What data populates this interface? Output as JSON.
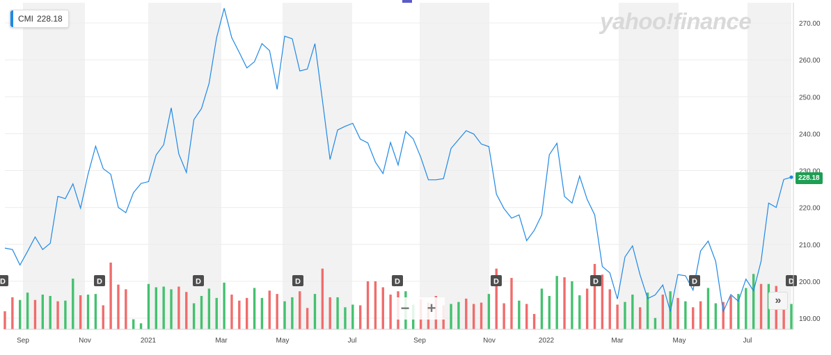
{
  "legend": {
    "symbol": "CMI",
    "value": "228.18"
  },
  "logo": {
    "text": "yahoo!finance"
  },
  "price_tag": "228.18",
  "controls": {
    "zoom_out": "−",
    "zoom_in": "+",
    "expand": "»"
  },
  "dividend_marker_label": "D",
  "colors": {
    "line": "#1e88e5",
    "up_volume": "#44c16f",
    "down_volume": "#f06c6c",
    "band": "#f2f2f2",
    "price_tag": "#1e9e53"
  },
  "chart_data": {
    "type": "line",
    "title": "",
    "xlabel": "",
    "ylabel": "",
    "ylim": [
      187,
      276
    ],
    "grid": true,
    "y_ticks": [
      "190.00",
      "200.00",
      "210.00",
      "220.00",
      "230.00",
      "240.00",
      "250.00",
      "260.00",
      "270.00"
    ],
    "x_labels": [
      "Sep",
      "Nov",
      "2021",
      "Mar",
      "May",
      "Jul",
      "Sep",
      "Nov",
      "2022",
      "Mar",
      "May",
      "Jul"
    ],
    "dividend_markers": [
      "Aug 2020",
      "Nov 2020",
      "Feb 2021",
      "May 2021",
      "Aug 2021",
      "Nov 2021",
      "Feb 2022",
      "May 2022",
      "Aug 2022"
    ],
    "series": [
      {
        "values": [
          209.0,
          208.6,
          204.4,
          208.1,
          212.0,
          208.6,
          210.3,
          223.0,
          222.4,
          226.4,
          219.8,
          229.0,
          236.6,
          230.5,
          229.0,
          220.0,
          218.6,
          224.0,
          226.5,
          227.0,
          234.2,
          237.0,
          247.0,
          234.5,
          229.5,
          243.8,
          246.8,
          253.6,
          266.0,
          274.0,
          266.0,
          262.0,
          257.8,
          259.5,
          264.4,
          262.5,
          252.0,
          266.4,
          265.7,
          257.0,
          257.5,
          264.4,
          249.0,
          233.0,
          241.0,
          242.0,
          242.8,
          238.5,
          237.5,
          232.3,
          229.2,
          237.6,
          231.5,
          240.6,
          238.6,
          233.6,
          227.5,
          227.5,
          227.8,
          236.0,
          238.4,
          240.8,
          239.9,
          237.2,
          236.5,
          223.6,
          219.7,
          217.1,
          218.0,
          211.0,
          213.8,
          218.0,
          234.3,
          237.4,
          223.0,
          221.2,
          228.5,
          222.2,
          218.0,
          204.0,
          202.3,
          195.2,
          206.6,
          209.6,
          201.7,
          195.3,
          196.3,
          199.0,
          191.8,
          201.8,
          201.5,
          197.6,
          208.2,
          210.9,
          205.4,
          191.8,
          196.4,
          194.6,
          200.6,
          197.4,
          205.4,
          221.2,
          220.0,
          227.6,
          228.2
        ],
        "volume_direction": [
          "down",
          "down",
          "up",
          "up",
          "down",
          "up",
          "up",
          "down",
          "up",
          "up",
          "down",
          "up",
          "up",
          "down",
          "down",
          "down",
          "down",
          "up",
          "up",
          "up",
          "up",
          "up",
          "up",
          "down",
          "down",
          "up",
          "up",
          "up",
          "up",
          "up",
          "down",
          "down",
          "down",
          "up",
          "up",
          "down",
          "down",
          "up",
          "up",
          "down",
          "down",
          "up",
          "down",
          "down",
          "up",
          "up",
          "up",
          "down",
          "down",
          "down",
          "down",
          "down",
          "down",
          "up",
          "up",
          "down",
          "down",
          "down",
          "down",
          "up",
          "up",
          "down",
          "down",
          "down",
          "up",
          "down",
          "down",
          "down",
          "up",
          "down",
          "down",
          "up",
          "up",
          "up",
          "down",
          "up",
          "up",
          "down",
          "down",
          "down",
          "down",
          "down",
          "up",
          "up",
          "down",
          "up",
          "up",
          "down",
          "up",
          "down",
          "up",
          "down",
          "down",
          "up",
          "up",
          "down",
          "down",
          "up",
          "up",
          "up",
          "down",
          "up",
          "down",
          "down",
          "up"
        ],
        "volume_level": [
          0.27,
          0.48,
          0.44,
          0.55,
          0.44,
          0.52,
          0.5,
          0.42,
          0.43,
          0.76,
          0.51,
          0.52,
          0.53,
          0.36,
          1.0,
          0.67,
          0.6,
          0.15,
          0.09,
          0.68,
          0.63,
          0.64,
          0.6,
          0.64,
          0.56,
          0.39,
          0.5,
          0.61,
          0.47,
          0.7,
          0.52,
          0.43,
          0.47,
          0.62,
          0.47,
          0.58,
          0.53,
          0.42,
          0.48,
          0.57,
          0.32,
          0.53,
          0.91,
          0.48,
          0.48,
          0.33,
          0.37,
          0.36,
          0.72,
          0.72,
          0.63,
          0.52,
          0.57,
          0.57,
          0.37,
          0.45,
          0.4,
          0.5,
          0.36,
          0.38,
          0.41,
          0.46,
          0.38,
          0.4,
          0.53,
          0.91,
          0.39,
          0.77,
          0.43,
          0.38,
          0.23,
          0.61,
          0.5,
          0.8,
          0.78,
          0.72,
          0.51,
          0.61,
          0.98,
          0.82,
          0.6,
          0.37,
          0.41,
          0.52,
          0.33,
          0.55,
          0.17,
          0.52,
          0.57,
          0.47,
          0.42,
          0.33,
          0.42,
          0.62,
          0.39,
          0.41,
          0.5,
          0.53,
          0.62,
          0.83,
          0.68,
          0.68,
          0.65,
          0.5,
          0.38
        ]
      }
    ]
  }
}
